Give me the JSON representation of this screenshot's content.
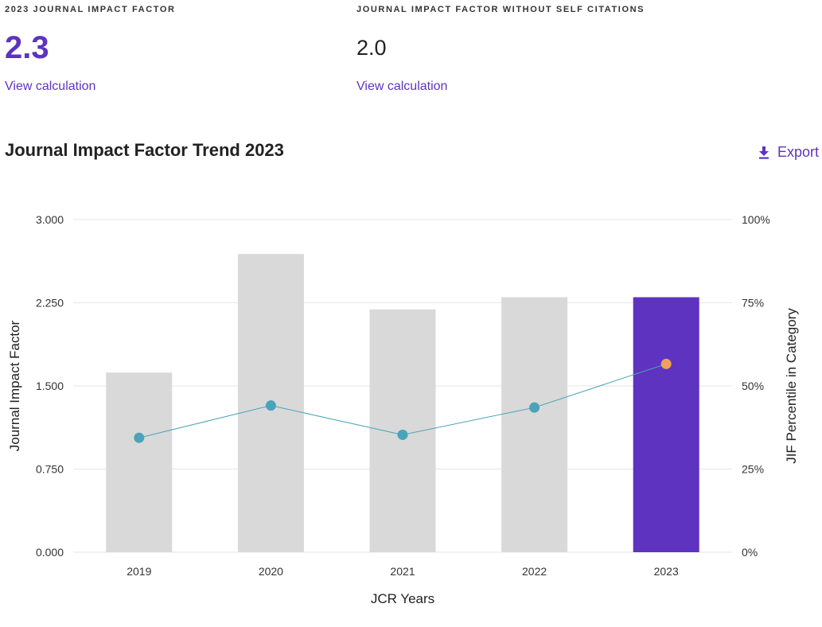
{
  "metrics": {
    "jif": {
      "label": "2023 JOURNAL IMPACT FACTOR",
      "value": "2.3",
      "link": "View calculation"
    },
    "jif_without_self": {
      "label": "JOURNAL IMPACT FACTOR WITHOUT SELF CITATIONS",
      "value": "2.0",
      "link": "View calculation"
    }
  },
  "section": {
    "title": "Journal Impact Factor Trend 2023",
    "export_label": "Export",
    "export_icon": "download-icon"
  },
  "colors": {
    "accent": "#5e33bf",
    "bar_default": "#d9d9d9",
    "bar_highlight": "#5e33bf",
    "line": "#4aa3b8",
    "point_highlight": "#f0a05a",
    "grid": "#e6e6e6"
  },
  "chart_data": {
    "type": "bar",
    "categories": [
      "2019",
      "2020",
      "2021",
      "2022",
      "2023"
    ],
    "xlabel": "JCR Years",
    "ylabel": "Journal Impact Factor",
    "y2label": "JIF Percentile in Category",
    "ylim": [
      0,
      3
    ],
    "y2lim": [
      0,
      100
    ],
    "y_ticks": [
      "0.000",
      "0.750",
      "1.500",
      "2.250",
      "3.000"
    ],
    "y2_ticks": [
      "0%",
      "25%",
      "50%",
      "75%",
      "100%"
    ],
    "grid": true,
    "highlight_category": "2023",
    "series": [
      {
        "type": "bar",
        "axis": "left",
        "values": [
          1.62,
          2.69,
          2.19,
          2.3,
          2.3
        ]
      },
      {
        "type": "line",
        "axis": "right",
        "values": [
          34.4,
          44.1,
          35.3,
          43.5,
          56.6
        ]
      }
    ]
  }
}
